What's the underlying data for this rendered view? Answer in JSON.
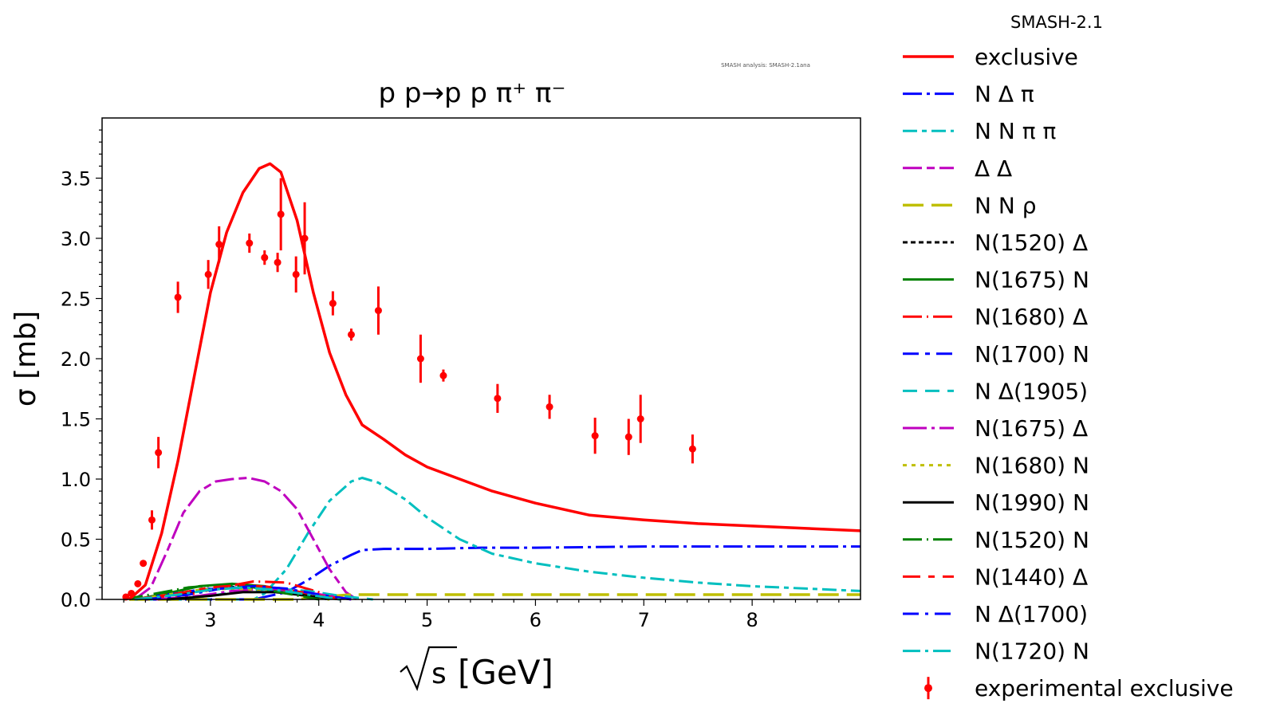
{
  "chart_data": {
    "type": "line",
    "title": "p p→p p π⁺ π⁻",
    "header": "SMASH-2.1",
    "watermark": "SMASH analysis: SMASH-2.1ana",
    "xlabel_root": "s",
    "xlabel_unit": "[GeV]",
    "ylabel": "σ [mb]",
    "xlim": [
      2.0,
      9.0
    ],
    "ylim": [
      0.0,
      4.0
    ],
    "xticks": [
      3,
      4,
      5,
      6,
      7,
      8
    ],
    "yticks": [
      0.0,
      0.5,
      1.0,
      1.5,
      2.0,
      2.5,
      3.0,
      3.5
    ],
    "xtick_labels": [
      "3",
      "4",
      "5",
      "6",
      "7",
      "8"
    ],
    "ytick_labels": [
      "0.0",
      "0.5",
      "1.0",
      "1.5",
      "2.0",
      "2.5",
      "3.0",
      "3.5"
    ],
    "series": [
      {
        "name": "exclusive",
        "color": "#ff0000",
        "dash": "",
        "width": 3.5,
        "x": [
          2.25,
          2.4,
          2.55,
          2.7,
          2.85,
          3.0,
          3.15,
          3.3,
          3.45,
          3.55,
          3.65,
          3.8,
          3.95,
          4.1,
          4.25,
          4.4,
          4.6,
          4.8,
          5.0,
          5.3,
          5.6,
          6.0,
          6.5,
          7.0,
          7.5,
          8.0,
          8.5,
          9.0
        ],
        "y": [
          0.0,
          0.12,
          0.55,
          1.15,
          1.85,
          2.55,
          3.05,
          3.38,
          3.58,
          3.62,
          3.55,
          3.15,
          2.55,
          2.05,
          1.7,
          1.45,
          1.33,
          1.2,
          1.1,
          1.0,
          0.9,
          0.8,
          0.7,
          0.66,
          0.63,
          0.61,
          0.59,
          0.57
        ]
      },
      {
        "name": "N Δ π",
        "color": "#0000ff",
        "dash": "24,6,4,6",
        "width": 3,
        "x": [
          2.25,
          3.4,
          3.7,
          3.9,
          4.1,
          4.3,
          4.4,
          4.6,
          5.0,
          5.5,
          6.0,
          7.0,
          8.0,
          9.0
        ],
        "y": [
          0.0,
          0.0,
          0.06,
          0.16,
          0.28,
          0.37,
          0.41,
          0.42,
          0.42,
          0.43,
          0.43,
          0.44,
          0.44,
          0.44
        ]
      },
      {
        "name": "N N π π",
        "color": "#00bfbf",
        "dash": "18,6,6,6",
        "width": 3,
        "x": [
          2.25,
          3.4,
          3.5,
          3.7,
          3.9,
          4.1,
          4.3,
          4.4,
          4.55,
          4.8,
          5.0,
          5.3,
          5.6,
          6.0,
          6.5,
          7.0,
          7.5,
          8.0,
          8.5,
          9.0
        ],
        "y": [
          0.0,
          0.0,
          0.05,
          0.25,
          0.55,
          0.82,
          0.98,
          1.01,
          0.97,
          0.83,
          0.68,
          0.5,
          0.38,
          0.3,
          0.23,
          0.18,
          0.14,
          0.11,
          0.09,
          0.07
        ]
      },
      {
        "name": "Δ Δ",
        "color": "#bf00bf",
        "dash": "24,6,10,6",
        "width": 3,
        "x": [
          2.3,
          2.45,
          2.6,
          2.75,
          2.9,
          3.05,
          3.2,
          3.35,
          3.5,
          3.65,
          3.8,
          3.95,
          4.1,
          4.25,
          4.35
        ],
        "y": [
          0.0,
          0.1,
          0.4,
          0.72,
          0.9,
          0.98,
          1.0,
          1.01,
          0.98,
          0.9,
          0.75,
          0.5,
          0.25,
          0.06,
          0.0
        ]
      },
      {
        "name": "N N ρ",
        "color": "#bfbf00",
        "dash": "26,10",
        "width": 3.5,
        "x": [
          2.25,
          3.8,
          4.0,
          4.3,
          5.0,
          6.0,
          7.0,
          8.0,
          9.0
        ],
        "y": [
          0.0,
          0.0,
          0.02,
          0.04,
          0.04,
          0.04,
          0.04,
          0.04,
          0.04
        ]
      },
      {
        "name": "N(1520) Δ",
        "color": "#000000",
        "dash": "6,4",
        "width": 3,
        "x": [
          2.3,
          2.7,
          3.0,
          3.3,
          3.6,
          3.9,
          4.1
        ],
        "y": [
          0.0,
          0.04,
          0.09,
          0.11,
          0.09,
          0.03,
          0.0
        ]
      },
      {
        "name": "N(1675) N",
        "color": "#008000",
        "dash": "",
        "width": 3,
        "x": [
          2.3,
          2.6,
          2.9,
          3.2,
          3.5,
          3.8,
          4.1
        ],
        "y": [
          0.0,
          0.05,
          0.11,
          0.13,
          0.11,
          0.05,
          0.0
        ]
      },
      {
        "name": "N(1680) Δ",
        "color": "#ff0000",
        "dash": "24,6,2,6",
        "width": 3,
        "x": [
          2.4,
          2.8,
          3.1,
          3.4,
          3.7,
          4.0,
          4.2
        ],
        "y": [
          0.0,
          0.04,
          0.1,
          0.15,
          0.14,
          0.06,
          0.0
        ]
      },
      {
        "name": "N(1700) N",
        "color": "#0000ff",
        "dash": "20,8,6,8",
        "width": 3,
        "x": [
          2.3,
          2.6,
          2.9,
          3.2,
          3.5,
          3.8,
          4.1
        ],
        "y": [
          0.0,
          0.04,
          0.08,
          0.1,
          0.08,
          0.04,
          0.0
        ]
      },
      {
        "name": "N Δ(1905)",
        "color": "#00bfbf",
        "dash": "18,10",
        "width": 3,
        "x": [
          2.6,
          3.0,
          3.3,
          3.6,
          3.9,
          4.2,
          4.5
        ],
        "y": [
          0.0,
          0.03,
          0.07,
          0.09,
          0.07,
          0.03,
          0.0
        ]
      },
      {
        "name": "N(1675) Δ",
        "color": "#bf00bf",
        "dash": "30,6,4,6",
        "width": 3,
        "x": [
          2.5,
          2.9,
          3.2,
          3.5,
          3.8,
          4.1,
          4.3
        ],
        "y": [
          0.0,
          0.03,
          0.07,
          0.09,
          0.07,
          0.03,
          0.0
        ]
      },
      {
        "name": "N(1680) N",
        "color": "#bfbf00",
        "dash": "5,6",
        "width": 3,
        "x": [
          2.3,
          2.6,
          2.9,
          3.2,
          3.5,
          3.8,
          4.1
        ],
        "y": [
          0.0,
          0.04,
          0.08,
          0.09,
          0.08,
          0.04,
          0.0
        ]
      },
      {
        "name": "N(1990) N",
        "color": "#000000",
        "dash": "",
        "width": 3,
        "x": [
          2.6,
          3.0,
          3.3,
          3.6,
          3.9,
          4.2
        ],
        "y": [
          0.0,
          0.03,
          0.06,
          0.06,
          0.03,
          0.0
        ]
      },
      {
        "name": "N(1520) N",
        "color": "#008000",
        "dash": "24,6,2,6",
        "width": 3,
        "x": [
          2.2,
          2.5,
          2.8,
          3.1,
          3.4,
          3.7,
          4.0
        ],
        "y": [
          0.0,
          0.05,
          0.1,
          0.12,
          0.1,
          0.05,
          0.0
        ]
      },
      {
        "name": "N(1440) Δ",
        "color": "#ff0000",
        "dash": "22,10,8,10",
        "width": 3,
        "x": [
          2.3,
          2.7,
          3.0,
          3.3,
          3.6,
          3.9,
          4.2
        ],
        "y": [
          0.0,
          0.05,
          0.1,
          0.12,
          0.1,
          0.05,
          0.0
        ]
      },
      {
        "name": "N Δ(1700)",
        "color": "#0000ff",
        "dash": "20,8,4,8",
        "width": 3,
        "x": [
          2.4,
          2.8,
          3.1,
          3.4,
          3.7,
          4.0,
          4.3
        ],
        "y": [
          0.0,
          0.04,
          0.09,
          0.11,
          0.09,
          0.04,
          0.0
        ]
      },
      {
        "name": "N(1720) N",
        "color": "#00bfbf",
        "dash": "22,6,4,6",
        "width": 3,
        "x": [
          2.3,
          2.7,
          3.0,
          3.3,
          3.6,
          3.9,
          4.2
        ],
        "y": [
          0.0,
          0.04,
          0.08,
          0.1,
          0.08,
          0.04,
          0.0
        ]
      }
    ],
    "experimental": {
      "name": "experimental exclusive",
      "color": "#ff0000",
      "points": [
        {
          "x": 2.22,
          "y": 0.02,
          "err": 0.0
        },
        {
          "x": 2.27,
          "y": 0.05,
          "err": 0.0
        },
        {
          "x": 2.33,
          "y": 0.13,
          "err": 0.0
        },
        {
          "x": 2.38,
          "y": 0.3,
          "err": 0.0
        },
        {
          "x": 2.46,
          "y": 0.66,
          "err": 0.08
        },
        {
          "x": 2.52,
          "y": 1.22,
          "err": 0.13
        },
        {
          "x": 2.7,
          "y": 2.51,
          "err": 0.13
        },
        {
          "x": 2.98,
          "y": 2.7,
          "err": 0.12
        },
        {
          "x": 3.08,
          "y": 2.95,
          "err": 0.15
        },
        {
          "x": 3.36,
          "y": 2.96,
          "err": 0.08
        },
        {
          "x": 3.5,
          "y": 2.84,
          "err": 0.06
        },
        {
          "x": 3.62,
          "y": 2.8,
          "err": 0.08
        },
        {
          "x": 3.65,
          "y": 3.2,
          "err": 0.3
        },
        {
          "x": 3.79,
          "y": 2.7,
          "err": 0.15
        },
        {
          "x": 3.87,
          "y": 3.0,
          "err": 0.3
        },
        {
          "x": 4.13,
          "y": 2.46,
          "err": 0.1
        },
        {
          "x": 4.3,
          "y": 2.2,
          "err": 0.05
        },
        {
          "x": 4.55,
          "y": 2.4,
          "err": 0.2
        },
        {
          "x": 4.94,
          "y": 2.0,
          "err": 0.2
        },
        {
          "x": 5.15,
          "y": 1.86,
          "err": 0.05
        },
        {
          "x": 5.65,
          "y": 1.67,
          "err": 0.12
        },
        {
          "x": 6.13,
          "y": 1.6,
          "err": 0.1
        },
        {
          "x": 6.55,
          "y": 1.36,
          "err": 0.15
        },
        {
          "x": 6.86,
          "y": 1.35,
          "err": 0.15
        },
        {
          "x": 6.97,
          "y": 1.5,
          "err": 0.2
        },
        {
          "x": 7.45,
          "y": 1.25,
          "err": 0.12
        }
      ]
    }
  }
}
